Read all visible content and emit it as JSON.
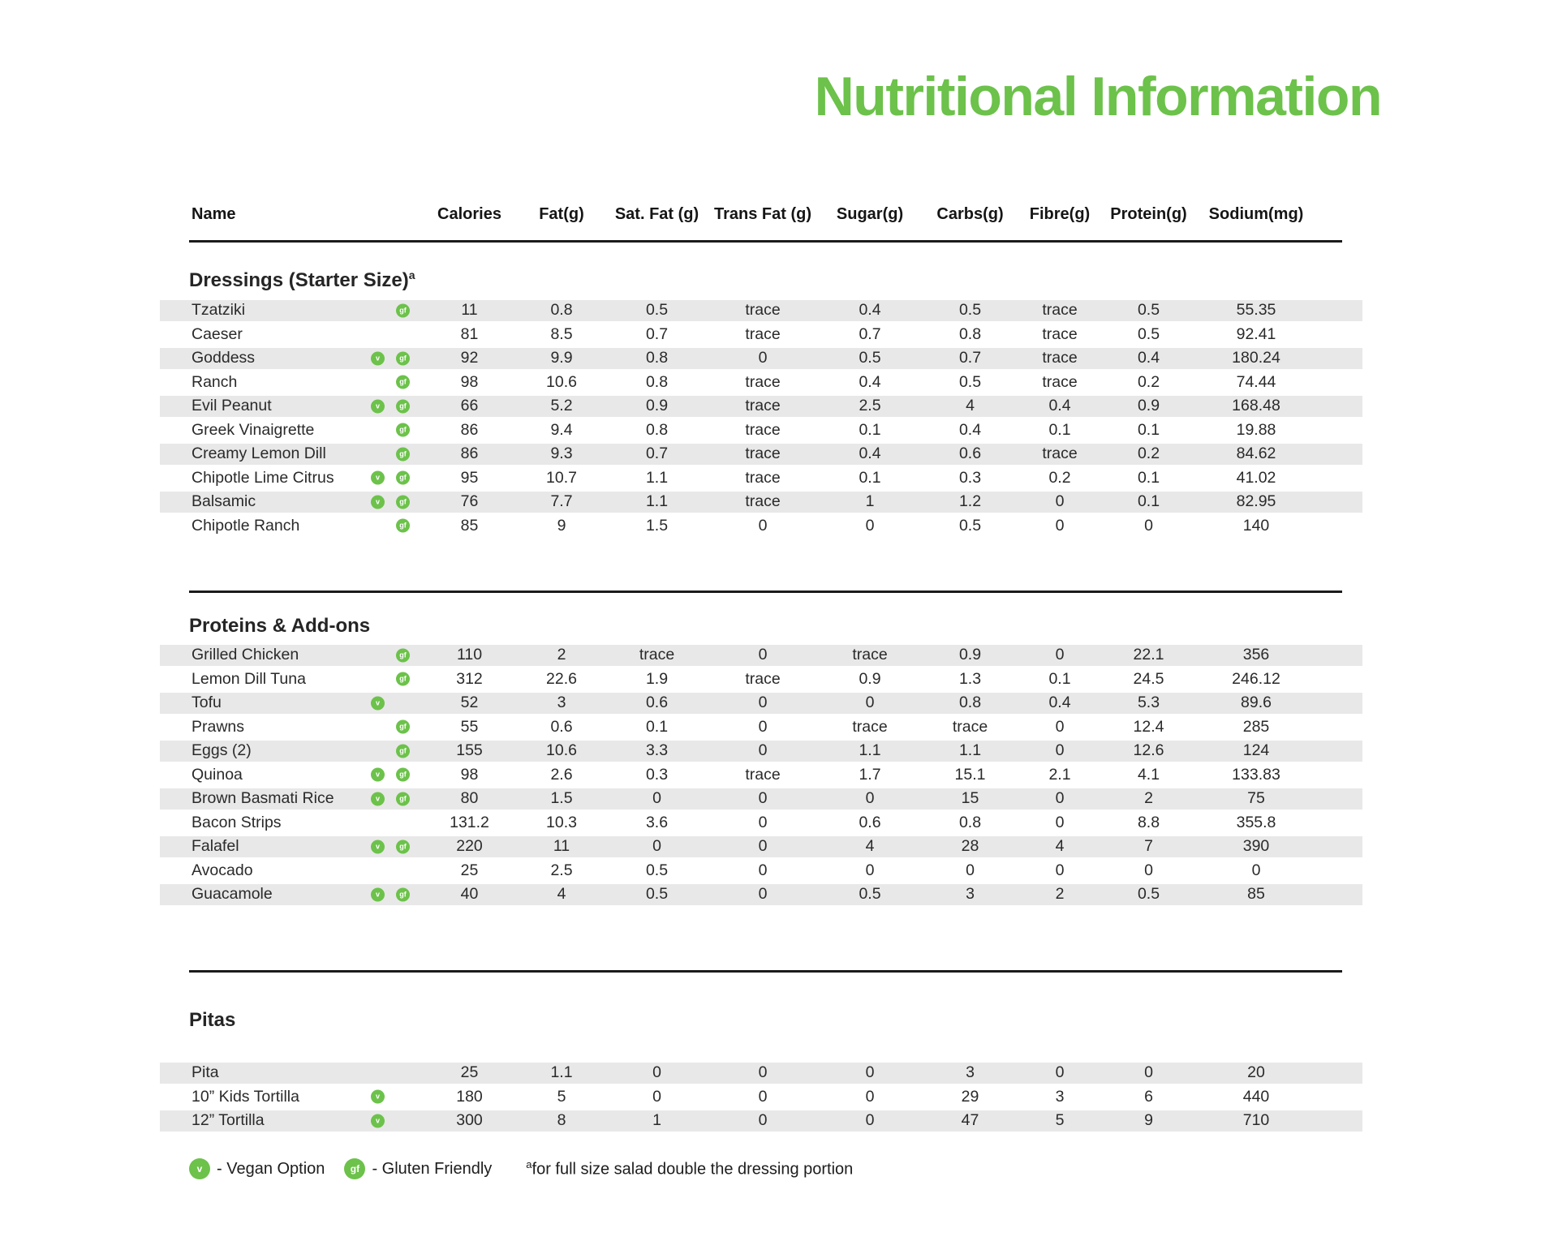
{
  "title": "Nutritional Information",
  "colors": {
    "accent_green": "#6cc24a",
    "row_stripe": "#e8e8e8",
    "text": "#2b2b2b"
  },
  "columns": [
    "Name",
    "Calories",
    "Fat(g)",
    "Sat. Fat (g)",
    "Trans Fat (g)",
    "Sugar(g)",
    "Carbs(g)",
    "Fibre(g)",
    "Protein(g)",
    "Sodium(mg)"
  ],
  "sections": [
    {
      "heading": "Dressings (Starter Size)",
      "heading_superscript": "a",
      "rows": [
        {
          "name": "Tzatziki",
          "badges": [
            "gf"
          ],
          "values": [
            "11",
            "0.8",
            "0.5",
            "trace",
            "0.4",
            "0.5",
            "trace",
            "0.5",
            "55.35"
          ]
        },
        {
          "name": "Caeser",
          "badges": [],
          "values": [
            "81",
            "8.5",
            "0.7",
            "trace",
            "0.7",
            "0.8",
            "trace",
            "0.5",
            "92.41"
          ]
        },
        {
          "name": "Goddess",
          "badges": [
            "v",
            "gf"
          ],
          "values": [
            "92",
            "9.9",
            "0.8",
            "0",
            "0.5",
            "0.7",
            "trace",
            "0.4",
            "180.24"
          ]
        },
        {
          "name": "Ranch",
          "badges": [
            "gf"
          ],
          "values": [
            "98",
            "10.6",
            "0.8",
            "trace",
            "0.4",
            "0.5",
            "trace",
            "0.2",
            "74.44"
          ]
        },
        {
          "name": "Evil Peanut",
          "badges": [
            "v",
            "gf"
          ],
          "values": [
            "66",
            "5.2",
            "0.9",
            "trace",
            "2.5",
            "4",
            "0.4",
            "0.9",
            "168.48"
          ]
        },
        {
          "name": "Greek Vinaigrette",
          "badges": [
            "gf"
          ],
          "values": [
            "86",
            "9.4",
            "0.8",
            "trace",
            "0.1",
            "0.4",
            "0.1",
            "0.1",
            "19.88"
          ]
        },
        {
          "name": "Creamy Lemon Dill",
          "badges": [
            "gf"
          ],
          "values": [
            "86",
            "9.3",
            "0.7",
            "trace",
            "0.4",
            "0.6",
            "trace",
            "0.2",
            "84.62"
          ]
        },
        {
          "name": "Chipotle Lime Citrus",
          "badges": [
            "v",
            "gf"
          ],
          "values": [
            "95",
            "10.7",
            "1.1",
            "trace",
            "0.1",
            "0.3",
            "0.2",
            "0.1",
            "41.02"
          ]
        },
        {
          "name": "Balsamic",
          "badges": [
            "v",
            "gf"
          ],
          "values": [
            "76",
            "7.7",
            "1.1",
            "trace",
            "1",
            "1.2",
            "0",
            "0.1",
            "82.95"
          ]
        },
        {
          "name": "Chipotle Ranch",
          "badges": [
            "gf"
          ],
          "values": [
            "85",
            "9",
            "1.5",
            "0",
            "0",
            "0.5",
            "0",
            "0",
            "140"
          ]
        }
      ]
    },
    {
      "heading": "Proteins & Add-ons",
      "heading_superscript": "",
      "rows": [
        {
          "name": "Grilled Chicken",
          "badges": [
            "gf"
          ],
          "values": [
            "110",
            "2",
            "trace",
            "0",
            "trace",
            "0.9",
            "0",
            "22.1",
            "356"
          ]
        },
        {
          "name": "Lemon Dill Tuna",
          "badges": [
            "gf"
          ],
          "values": [
            "312",
            "22.6",
            "1.9",
            "trace",
            "0.9",
            "1.3",
            "0.1",
            "24.5",
            "246.12"
          ]
        },
        {
          "name": "Tofu",
          "badges": [
            "v"
          ],
          "values": [
            "52",
            "3",
            "0.6",
            "0",
            "0",
            "0.8",
            "0.4",
            "5.3",
            "89.6"
          ]
        },
        {
          "name": "Prawns",
          "badges": [
            "gf"
          ],
          "values": [
            "55",
            "0.6",
            "0.1",
            "0",
            "trace",
            "trace",
            "0",
            "12.4",
            "285"
          ]
        },
        {
          "name": "Eggs (2)",
          "badges": [
            "gf"
          ],
          "values": [
            "155",
            "10.6",
            "3.3",
            "0",
            "1.1",
            "1.1",
            "0",
            "12.6",
            "124"
          ]
        },
        {
          "name": "Quinoa",
          "badges": [
            "v",
            "gf"
          ],
          "values": [
            "98",
            "2.6",
            "0.3",
            "trace",
            "1.7",
            "15.1",
            "2.1",
            "4.1",
            "133.83"
          ]
        },
        {
          "name": "Brown Basmati Rice",
          "badges": [
            "v",
            "gf"
          ],
          "values": [
            "80",
            "1.5",
            "0",
            "0",
            "0",
            "15",
            "0",
            "2",
            "75"
          ]
        },
        {
          "name": "Bacon Strips",
          "badges": [],
          "values": [
            "131.2",
            "10.3",
            "3.6",
            "0",
            "0.6",
            "0.8",
            "0",
            "8.8",
            "355.8"
          ]
        },
        {
          "name": "Falafel",
          "badges": [
            "v",
            "gf"
          ],
          "values": [
            "220",
            "11",
            "0",
            "0",
            "4",
            "28",
            "4",
            "7",
            "390"
          ]
        },
        {
          "name": "Avocado",
          "badges": [],
          "values": [
            "25",
            "2.5",
            "0.5",
            "0",
            "0",
            "0",
            "0",
            "0",
            "0"
          ]
        },
        {
          "name": "Guacamole",
          "badges": [
            "v",
            "gf"
          ],
          "values": [
            "40",
            "4",
            "0.5",
            "0",
            "0.5",
            "3",
            "2",
            "0.5",
            "85"
          ]
        }
      ]
    },
    {
      "heading": "Pitas",
      "heading_superscript": "",
      "rows": [
        {
          "name": "Pita",
          "badges": [],
          "values": [
            "25",
            "1.1",
            "0",
            "0",
            "0",
            "3",
            "0",
            "0",
            "20"
          ]
        },
        {
          "name": "10” Kids Tortilla",
          "badges": [
            "v"
          ],
          "values": [
            "180",
            "5",
            "0",
            "0",
            "0",
            "29",
            "3",
            "6",
            "440"
          ]
        },
        {
          "name": "12” Tortilla",
          "badges": [
            "v"
          ],
          "values": [
            "300",
            "8",
            "1",
            "0",
            "0",
            "47",
            "5",
            "9",
            "710"
          ]
        }
      ]
    }
  ],
  "legend": {
    "vegan_badge": "v",
    "vegan_label": "- Vegan Option",
    "gluten_badge": "gf",
    "gluten_label": "- Gluten Friendly",
    "note_superscript": "a",
    "note": "for full size salad double the dressing portion"
  }
}
